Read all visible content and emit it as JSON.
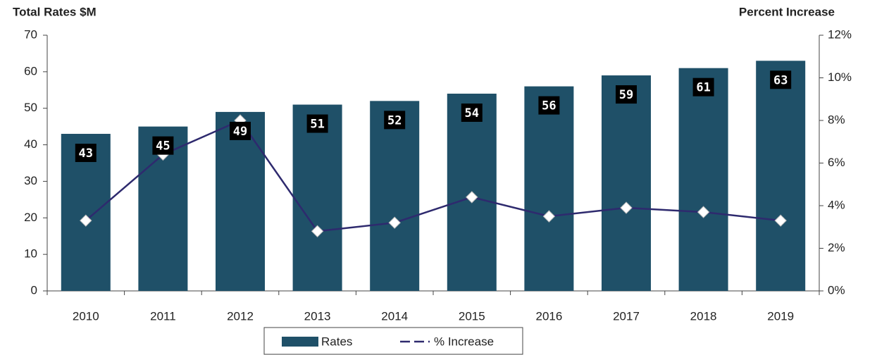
{
  "chart_data": {
    "type": "bar",
    "y_title": "Total Rates $M",
    "y2_title": "Percent Increase",
    "categories": [
      "2010",
      "2011",
      "2012",
      "2013",
      "2014",
      "2015",
      "2016",
      "2017",
      "2018",
      "2019"
    ],
    "series": [
      {
        "name": "Rates",
        "type": "bar",
        "color": "#1f5068",
        "values": [
          43,
          45,
          49,
          51,
          52,
          54,
          56,
          59,
          61,
          63
        ]
      },
      {
        "name": "% Increase",
        "type": "line",
        "axis": "y2",
        "color": "#2e2a6e",
        "values": [
          3.3,
          6.4,
          8.0,
          2.8,
          3.2,
          4.4,
          3.5,
          3.9,
          3.7,
          3.3
        ]
      }
    ],
    "ylim": [
      0,
      70
    ],
    "yticks": [
      0,
      10,
      20,
      30,
      40,
      50,
      60,
      70
    ],
    "y2lim": [
      0,
      12
    ],
    "y2ticks": [
      {
        "value": 0,
        "label": "0%"
      },
      {
        "value": 2,
        "label": "2%"
      },
      {
        "value": 4,
        "label": "4%"
      },
      {
        "value": 6,
        "label": "6%"
      },
      {
        "value": 8,
        "label": "8%"
      },
      {
        "value": 10,
        "label": "10%"
      },
      {
        "value": 12,
        "label": "12%"
      }
    ],
    "legend": "bottom"
  }
}
